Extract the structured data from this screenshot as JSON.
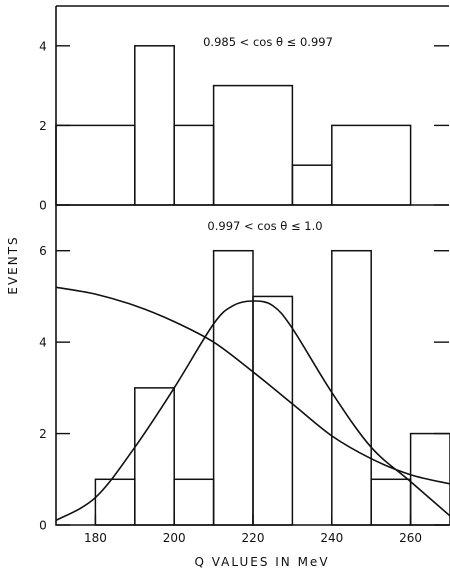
{
  "chart_data": [
    {
      "type": "bar",
      "style": "histogram",
      "panel": "top",
      "annotation": "0.985 < cos θ ≤ 0.997",
      "bin_edges": [
        170,
        190,
        200,
        210,
        230,
        240,
        260
      ],
      "values": [
        2,
        4,
        2,
        3,
        1,
        2
      ],
      "xlim": [
        170,
        270
      ],
      "ylim": [
        0,
        5
      ],
      "y_ticks": [
        "0",
        "2",
        "4"
      ],
      "y_tick_values": [
        0,
        2,
        4
      ],
      "grid": false
    },
    {
      "type": "bar",
      "style": "histogram",
      "panel": "bottom",
      "annotation": "0.997 < cos θ ≤ 1.0",
      "bin_edges": [
        180,
        190,
        200,
        210,
        220,
        230,
        240,
        250,
        260,
        270
      ],
      "values": [
        1,
        3,
        1,
        6,
        5,
        0,
        6,
        1,
        2
      ],
      "xlim": [
        170,
        270
      ],
      "ylim": [
        0,
        7
      ],
      "y_ticks": [
        "0",
        "2",
        "4",
        "6"
      ],
      "y_tick_values": [
        0,
        2,
        4,
        6
      ],
      "x_ticks": [
        "180",
        "200",
        "220",
        "240",
        "260"
      ],
      "x_tick_values": [
        180,
        200,
        220,
        240,
        260
      ],
      "xlabel": "Q VALUES IN MeV",
      "ylabel": "EVENTS",
      "grid": false,
      "curves": [
        {
          "shape": "bell",
          "x": [
            170,
            180,
            190,
            200,
            210,
            215,
            220,
            225,
            230,
            240,
            250,
            260,
            270
          ],
          "y": [
            0.1,
            0.6,
            1.7,
            3.0,
            4.4,
            4.8,
            4.9,
            4.8,
            4.3,
            2.9,
            1.7,
            0.95,
            0.2
          ]
        },
        {
          "shape": "falling",
          "x": [
            170,
            180,
            190,
            200,
            210,
            220,
            230,
            240,
            250,
            260,
            270
          ],
          "y": [
            5.2,
            5.05,
            4.8,
            4.45,
            4.0,
            3.35,
            2.65,
            1.95,
            1.45,
            1.1,
            0.9
          ]
        }
      ]
    }
  ]
}
